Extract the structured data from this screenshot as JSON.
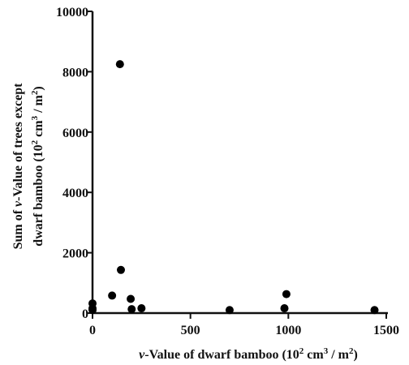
{
  "chart_data": {
    "type": "scatter",
    "xlabel": {
      "prefix_italic": "v",
      "main": "-Value of dwarf bamboo (10",
      "exp1": "2",
      "mid": "  cm",
      "exp2": "3",
      "mid2": " / m",
      "exp3": "2",
      "suffix": ")"
    },
    "ylabel": {
      "line1_pre": "Sum of ",
      "line1_italic": "v",
      "line1_post": "-Value of trees except",
      "line2_pre": "dwarf bamboo (10",
      "line2_exp1": "2",
      "line2_mid": "  cm",
      "line2_exp2": "3",
      "line2_mid2": " / m",
      "line2_exp3": "2",
      "line2_post": ")"
    },
    "xlim": [
      0,
      1500
    ],
    "ylim": [
      0,
      10000
    ],
    "xticks": [
      0,
      500,
      1000,
      1500
    ],
    "yticks": [
      0,
      2000,
      4000,
      6000,
      8000,
      10000
    ],
    "grid": false,
    "points": [
      {
        "x": 0,
        "y": 320
      },
      {
        "x": 0,
        "y": 160
      },
      {
        "x": 0,
        "y": 100
      },
      {
        "x": 100,
        "y": 580
      },
      {
        "x": 140,
        "y": 8250
      },
      {
        "x": 145,
        "y": 1430
      },
      {
        "x": 195,
        "y": 470
      },
      {
        "x": 200,
        "y": 130
      },
      {
        "x": 250,
        "y": 160
      },
      {
        "x": 700,
        "y": 100
      },
      {
        "x": 980,
        "y": 160
      },
      {
        "x": 990,
        "y": 630
      },
      {
        "x": 1440,
        "y": 100
      }
    ]
  }
}
